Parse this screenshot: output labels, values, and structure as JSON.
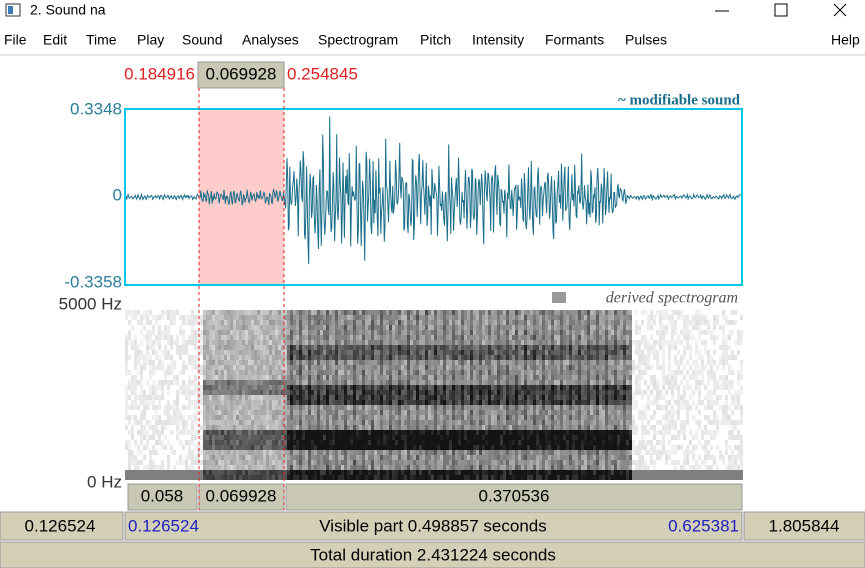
{
  "window": {
    "title": "2. Sound na"
  },
  "menu": [
    "File",
    "Edit",
    "Time",
    "Play",
    "Sound",
    "Analyses",
    "Spectrogram",
    "Pitch",
    "Intensity",
    "Formants",
    "Pulses",
    "Help"
  ],
  "selection": {
    "start": "0.184916",
    "duration": "0.069928",
    "end": "0.254845"
  },
  "waveform": {
    "label": "~ modifiable sound",
    "ymax": "0.3348",
    "zero": "0",
    "ymin": "-0.3358"
  },
  "spectrogram": {
    "label": "derived spectrogram",
    "fmax": "5000 Hz",
    "fmin": "0 Hz"
  },
  "segments": [
    "0.058",
    "0.069928",
    "0.370536"
  ],
  "visible": {
    "before": "0.126524",
    "start": "0.126524",
    "label": "Visible part 0.498857 seconds",
    "end": "0.625381",
    "after": "1.805844"
  },
  "total": "Total duration 2.431224 seconds"
}
